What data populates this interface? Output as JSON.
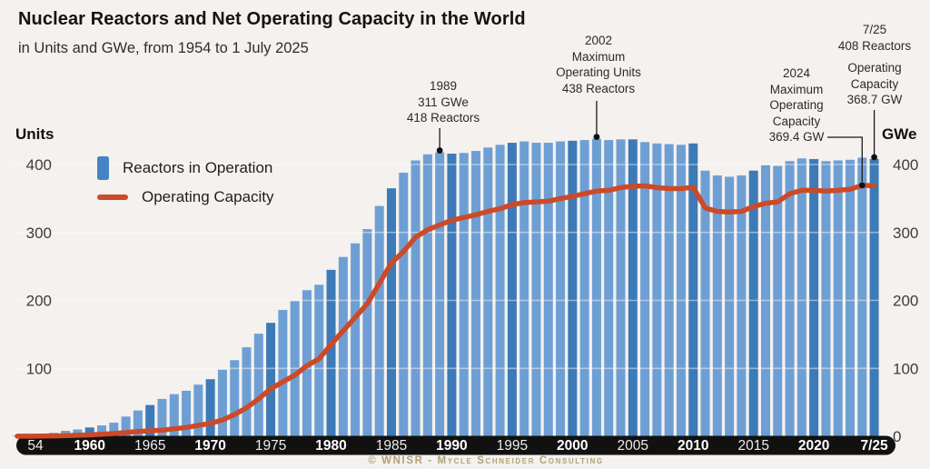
{
  "title": "Nuclear Reactors and Net Operating Capacity in the World",
  "subtitle": "in Units and GWe, from 1954 to 1 July 2025",
  "left_axis": {
    "label": "Units",
    "ticks": [
      400,
      300,
      200,
      100
    ]
  },
  "right_axis": {
    "label": "GWe",
    "ticks": [
      400,
      300,
      200,
      100,
      0
    ]
  },
  "legend": {
    "items": [
      {
        "label": "Reactors in Operation",
        "swatch": "bar-icon"
      },
      {
        "label": "Operating Capacity",
        "swatch": "line-icon"
      }
    ]
  },
  "annotations": {
    "y1989": {
      "year": "1989",
      "l1": "311 GWe",
      "l2": "418 Reactors"
    },
    "y2002": {
      "year": "2002",
      "l1": "Maximum",
      "l2": "Operating Units",
      "l3": "438 Reactors"
    },
    "y2024": {
      "year": "2024",
      "l1": "Maximum",
      "l2": "Operating",
      "l3": "Capacity",
      "l4": "369.4 GW"
    },
    "y725": {
      "year": "7/25",
      "l1": "408 Reactors",
      "l2": "Operating",
      "l3": "Capacity",
      "l4": "368.7 GW"
    }
  },
  "footer": "© WNISR - Mycle Schneider Consulting",
  "colors": {
    "background": "#f4f1ee",
    "bar_medium": "#6e9fd4",
    "bar_dark": "#3d7ab8",
    "line": "#cc4a28",
    "axis_bar": "#111111",
    "legend_bar": "#4584c4",
    "footer_text": "#b3a077"
  },
  "chart_data": {
    "type": "combo",
    "title": "Nuclear Reactors and Net Operating Capacity in the World",
    "subtitle": "in Units and GWe, from 1954 to 1 July 2025",
    "x_start_year": 1954,
    "x_end_label": "7/25",
    "ylim_units": [
      0,
      450
    ],
    "ylim_gwe": [
      0,
      450
    ],
    "grid_values": [
      100,
      200,
      300,
      400
    ],
    "xticks": [
      {
        "label": "54",
        "year": 1954,
        "bold": false
      },
      {
        "label": "1960",
        "year": 1960,
        "bold": true
      },
      {
        "label": "1965",
        "year": 1965,
        "bold": false
      },
      {
        "label": "1970",
        "year": 1970,
        "bold": true
      },
      {
        "label": "1975",
        "year": 1975,
        "bold": false
      },
      {
        "label": "1980",
        "year": 1980,
        "bold": true
      },
      {
        "label": "1985",
        "year": 1985,
        "bold": false
      },
      {
        "label": "1990",
        "year": 1990,
        "bold": true
      },
      {
        "label": "1995",
        "year": 1995,
        "bold": false
      },
      {
        "label": "2000",
        "year": 2000,
        "bold": true
      },
      {
        "label": "2005",
        "year": 2005,
        "bold": false
      },
      {
        "label": "2010",
        "year": 2010,
        "bold": true
      },
      {
        "label": "2015",
        "year": 2015,
        "bold": false
      },
      {
        "label": "2020",
        "year": 2020,
        "bold": true
      },
      {
        "label": "7/25",
        "year": 2025,
        "bold": true
      }
    ],
    "series": [
      {
        "name": "Reactors in Operation",
        "type": "bar",
        "unit": "units",
        "values": [
          1,
          2,
          3,
          5,
          8,
          10,
          13,
          16,
          20,
          29,
          38,
          46,
          55,
          62,
          67,
          76,
          84,
          98,
          112,
          131,
          151,
          167,
          186,
          199,
          215,
          223,
          245,
          264,
          284,
          305,
          339,
          365,
          388,
          406,
          415,
          418,
          416,
          417,
          420,
          425,
          429,
          432,
          434,
          432,
          432,
          434,
          435,
          436,
          438,
          436,
          437,
          437,
          433,
          431,
          430,
          429,
          431,
          391,
          384,
          382,
          384,
          391,
          399,
          398,
          405,
          409,
          408,
          405,
          406,
          407,
          410,
          408
        ]
      },
      {
        "name": "Operating Capacity",
        "type": "line",
        "unit": "GW",
        "values": [
          0.1,
          0.2,
          0.4,
          0.6,
          1,
          1.5,
          2,
          3,
          4,
          5.5,
          7,
          8,
          9,
          11,
          13,
          16,
          19,
          24,
          32,
          42,
          55,
          70,
          80,
          90,
          104,
          114,
          135,
          155,
          175,
          195,
          225,
          255,
          272,
          293,
          304,
          311,
          318,
          322,
          326,
          331,
          335,
          341,
          344,
          345,
          346,
          350,
          353,
          357,
          361,
          362,
          366,
          368,
          368.5,
          366,
          364.5,
          364.5,
          366.5,
          336,
          331,
          330,
          331,
          338,
          343,
          345,
          357,
          362,
          362,
          361,
          362,
          363.5,
          369.4,
          368.7
        ]
      }
    ],
    "callouts": [
      {
        "year": 1989,
        "text": "1989 311 GWe 418 Reactors",
        "anchor": "bar-top"
      },
      {
        "year": 2002,
        "text": "2002 Maximum Operating Units 438 Reactors",
        "anchor": "bar-top"
      },
      {
        "year": 2024,
        "text": "2024 Maximum Operating Capacity 369.4 GW",
        "anchor": "line"
      },
      {
        "year": 2025,
        "text": "7/25 408 Reactors Operating Capacity 368.7 GW",
        "anchor": "bar-top"
      }
    ],
    "legend_position": "upper-left",
    "grid": "faint-white-over-bars"
  }
}
